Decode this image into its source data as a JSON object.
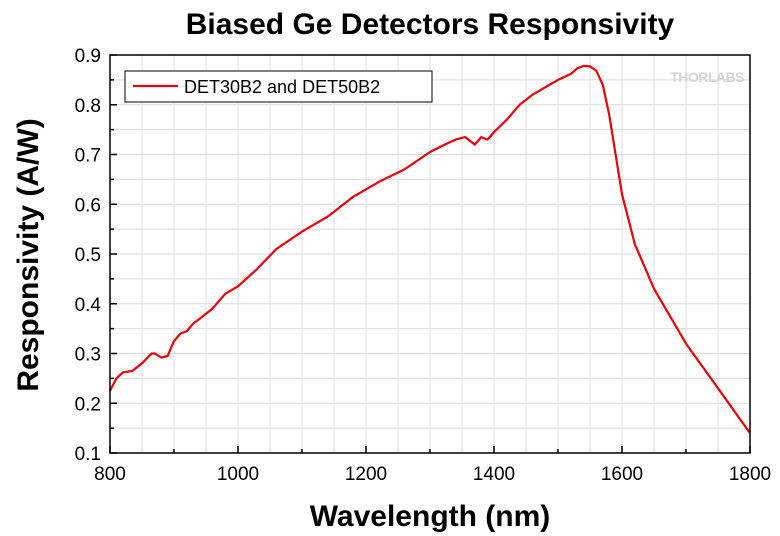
{
  "chart_data": {
    "type": "line",
    "title": "Biased Ge Detectors Responsivity",
    "xlabel": "Wavelength (nm)",
    "ylabel": "Responsivity (A/W)",
    "xlim": [
      800,
      1800
    ],
    "ylim": [
      0.1,
      0.9
    ],
    "xticks": [
      "800",
      "1000",
      "1200",
      "1400",
      "1600",
      "1800"
    ],
    "yticks": [
      "0.1",
      "0.2",
      "0.3",
      "0.4",
      "0.5",
      "0.6",
      "0.7",
      "0.8",
      "0.9"
    ],
    "grid": true,
    "legend_position": "top-left",
    "watermark": "THORLABS",
    "series": [
      {
        "name": "DET30B2 and DET50B2",
        "color": "#e8000b",
        "x": [
          800,
          810,
          820,
          835,
          850,
          865,
          870,
          880,
          890,
          900,
          910,
          920,
          930,
          940,
          960,
          980,
          1000,
          1030,
          1060,
          1100,
          1140,
          1180,
          1220,
          1260,
          1300,
          1320,
          1340,
          1355,
          1370,
          1380,
          1390,
          1400,
          1420,
          1440,
          1460,
          1480,
          1500,
          1520,
          1530,
          1540,
          1550,
          1560,
          1570,
          1580,
          1590,
          1600,
          1620,
          1650,
          1700,
          1750,
          1800
        ],
        "y": [
          0.225,
          0.25,
          0.262,
          0.265,
          0.28,
          0.3,
          0.3,
          0.292,
          0.295,
          0.325,
          0.34,
          0.345,
          0.36,
          0.37,
          0.39,
          0.42,
          0.435,
          0.47,
          0.51,
          0.545,
          0.575,
          0.615,
          0.645,
          0.67,
          0.705,
          0.718,
          0.73,
          0.735,
          0.72,
          0.735,
          0.73,
          0.745,
          0.77,
          0.8,
          0.82,
          0.835,
          0.85,
          0.862,
          0.873,
          0.878,
          0.877,
          0.868,
          0.84,
          0.78,
          0.7,
          0.62,
          0.52,
          0.43,
          0.32,
          0.23,
          0.14
        ]
      }
    ]
  }
}
